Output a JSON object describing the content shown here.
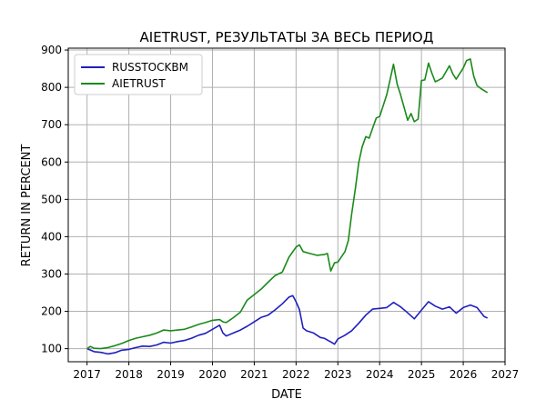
{
  "chart_data": {
    "type": "line",
    "title": "AIETRUST, РЕЗУЛЬТАТЫ ЗА ВЕСЬ ПЕРИОД",
    "xlabel": "DATE",
    "ylabel": "RETURN IN PERCENT",
    "xlim": [
      2016.55,
      2027.0
    ],
    "ylim": [
      65,
      905
    ],
    "x_ticks": [
      2017,
      2018,
      2019,
      2020,
      2021,
      2022,
      2023,
      2024,
      2025,
      2026,
      2027
    ],
    "y_ticks": [
      100,
      200,
      300,
      400,
      500,
      600,
      700,
      800,
      900
    ],
    "grid": true,
    "legend_position": "top-left",
    "series": [
      {
        "name": "RUSSTOCKBM",
        "color": "#1f1fbf",
        "points": [
          [
            2017.0,
            100
          ],
          [
            2017.17,
            92
          ],
          [
            2017.33,
            90
          ],
          [
            2017.5,
            86
          ],
          [
            2017.67,
            89
          ],
          [
            2017.83,
            96
          ],
          [
            2018.0,
            98
          ],
          [
            2018.17,
            103
          ],
          [
            2018.33,
            107
          ],
          [
            2018.5,
            106
          ],
          [
            2018.67,
            110
          ],
          [
            2018.83,
            117
          ],
          [
            2019.0,
            115
          ],
          [
            2019.17,
            119
          ],
          [
            2019.33,
            122
          ],
          [
            2019.5,
            128
          ],
          [
            2019.67,
            136
          ],
          [
            2019.83,
            141
          ],
          [
            2020.0,
            152
          ],
          [
            2020.17,
            163
          ],
          [
            2020.25,
            142
          ],
          [
            2020.33,
            134
          ],
          [
            2020.5,
            142
          ],
          [
            2020.67,
            150
          ],
          [
            2020.83,
            160
          ],
          [
            2021.0,
            172
          ],
          [
            2021.17,
            184
          ],
          [
            2021.33,
            190
          ],
          [
            2021.5,
            204
          ],
          [
            2021.67,
            220
          ],
          [
            2021.83,
            238
          ],
          [
            2021.92,
            242
          ],
          [
            2022.0,
            226
          ],
          [
            2022.08,
            205
          ],
          [
            2022.17,
            155
          ],
          [
            2022.25,
            148
          ],
          [
            2022.42,
            142
          ],
          [
            2022.58,
            130
          ],
          [
            2022.67,
            128
          ],
          [
            2022.83,
            118
          ],
          [
            2022.92,
            112
          ],
          [
            2023.0,
            126
          ],
          [
            2023.17,
            136
          ],
          [
            2023.33,
            148
          ],
          [
            2023.5,
            168
          ],
          [
            2023.67,
            190
          ],
          [
            2023.83,
            206
          ],
          [
            2024.0,
            208
          ],
          [
            2024.17,
            210
          ],
          [
            2024.33,
            224
          ],
          [
            2024.5,
            212
          ],
          [
            2024.67,
            196
          ],
          [
            2024.83,
            180
          ],
          [
            2025.0,
            203
          ],
          [
            2025.17,
            226
          ],
          [
            2025.33,
            214
          ],
          [
            2025.5,
            206
          ],
          [
            2025.67,
            212
          ],
          [
            2025.83,
            195
          ],
          [
            2026.0,
            210
          ],
          [
            2026.17,
            217
          ],
          [
            2026.33,
            210
          ],
          [
            2026.5,
            186
          ],
          [
            2026.58,
            182
          ]
        ]
      },
      {
        "name": "AIETRUST",
        "color": "#1a8a1a",
        "points": [
          [
            2017.0,
            100
          ],
          [
            2017.08,
            106
          ],
          [
            2017.17,
            101
          ],
          [
            2017.33,
            100
          ],
          [
            2017.5,
            103
          ],
          [
            2017.67,
            108
          ],
          [
            2017.83,
            114
          ],
          [
            2018.0,
            122
          ],
          [
            2018.17,
            128
          ],
          [
            2018.33,
            132
          ],
          [
            2018.5,
            136
          ],
          [
            2018.67,
            142
          ],
          [
            2018.83,
            150
          ],
          [
            2019.0,
            148
          ],
          [
            2019.17,
            150
          ],
          [
            2019.33,
            152
          ],
          [
            2019.5,
            158
          ],
          [
            2019.67,
            165
          ],
          [
            2019.83,
            170
          ],
          [
            2020.0,
            176
          ],
          [
            2020.17,
            178
          ],
          [
            2020.25,
            172
          ],
          [
            2020.33,
            170
          ],
          [
            2020.5,
            183
          ],
          [
            2020.67,
            198
          ],
          [
            2020.83,
            230
          ],
          [
            2021.0,
            245
          ],
          [
            2021.17,
            260
          ],
          [
            2021.33,
            278
          ],
          [
            2021.5,
            296
          ],
          [
            2021.67,
            305
          ],
          [
            2021.83,
            345
          ],
          [
            2022.0,
            372
          ],
          [
            2022.08,
            378
          ],
          [
            2022.17,
            360
          ],
          [
            2022.33,
            355
          ],
          [
            2022.5,
            350
          ],
          [
            2022.67,
            352
          ],
          [
            2022.75,
            355
          ],
          [
            2022.83,
            308
          ],
          [
            2022.92,
            330
          ],
          [
            2023.0,
            332
          ],
          [
            2023.17,
            360
          ],
          [
            2023.25,
            390
          ],
          [
            2023.33,
            460
          ],
          [
            2023.42,
            530
          ],
          [
            2023.5,
            598
          ],
          [
            2023.58,
            640
          ],
          [
            2023.67,
            668
          ],
          [
            2023.75,
            664
          ],
          [
            2023.83,
            690
          ],
          [
            2023.92,
            718
          ],
          [
            2024.0,
            722
          ],
          [
            2024.17,
            780
          ],
          [
            2024.33,
            862
          ],
          [
            2024.42,
            808
          ],
          [
            2024.5,
            780
          ],
          [
            2024.67,
            712
          ],
          [
            2024.75,
            730
          ],
          [
            2024.83,
            708
          ],
          [
            2024.92,
            715
          ],
          [
            2025.0,
            818
          ],
          [
            2025.08,
            820
          ],
          [
            2025.17,
            865
          ],
          [
            2025.25,
            838
          ],
          [
            2025.33,
            815
          ],
          [
            2025.42,
            820
          ],
          [
            2025.5,
            825
          ],
          [
            2025.67,
            858
          ],
          [
            2025.75,
            836
          ],
          [
            2025.83,
            822
          ],
          [
            2026.0,
            852
          ],
          [
            2026.08,
            872
          ],
          [
            2026.17,
            876
          ],
          [
            2026.25,
            830
          ],
          [
            2026.33,
            805
          ],
          [
            2026.42,
            797
          ],
          [
            2026.58,
            786
          ]
        ]
      }
    ]
  }
}
